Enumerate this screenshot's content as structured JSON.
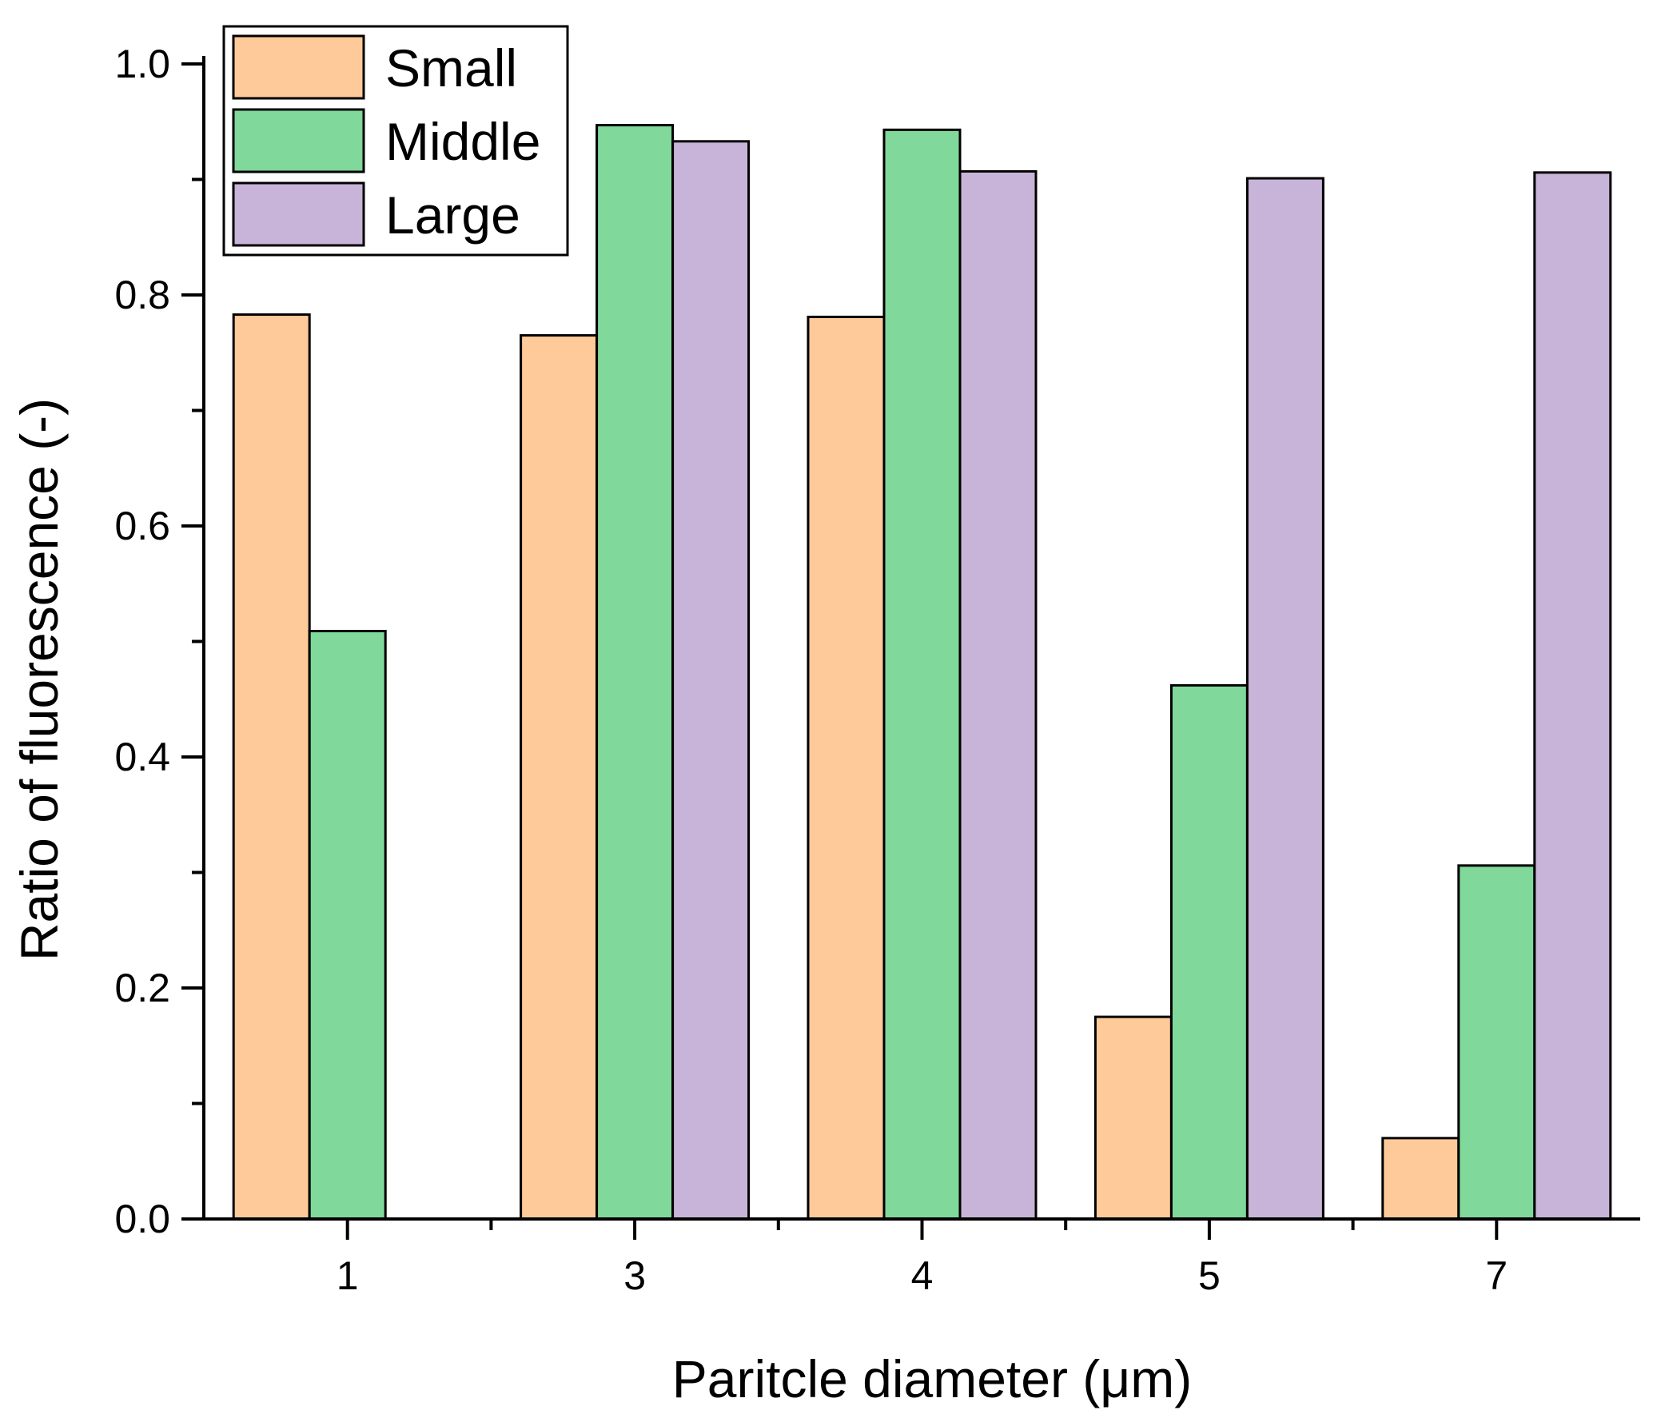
{
  "chart_data": {
    "type": "bar",
    "title": "",
    "xlabel": "Paritcle diameter (μm)",
    "ylabel": "Ratio of fluorescence (-)",
    "ylim": [
      0,
      1.0
    ],
    "yticks": [
      "0.0",
      "0.2",
      "0.4",
      "0.6",
      "0.8",
      "1.0"
    ],
    "categories": [
      "1",
      "3",
      "4",
      "5",
      "7"
    ],
    "legend_position": "top-left",
    "series": [
      {
        "name": "Small",
        "color": "#FFCA99",
        "values": [
          0.783,
          0.765,
          0.781,
          0.175,
          0.07
        ]
      },
      {
        "name": "Middle",
        "color": "#80D89A",
        "values": [
          0.509,
          0.947,
          0.943,
          0.462,
          0.306
        ]
      },
      {
        "name": "Large",
        "color": "#C8B4D8",
        "values": [
          null,
          0.933,
          0.907,
          0.901,
          0.906
        ]
      }
    ]
  }
}
